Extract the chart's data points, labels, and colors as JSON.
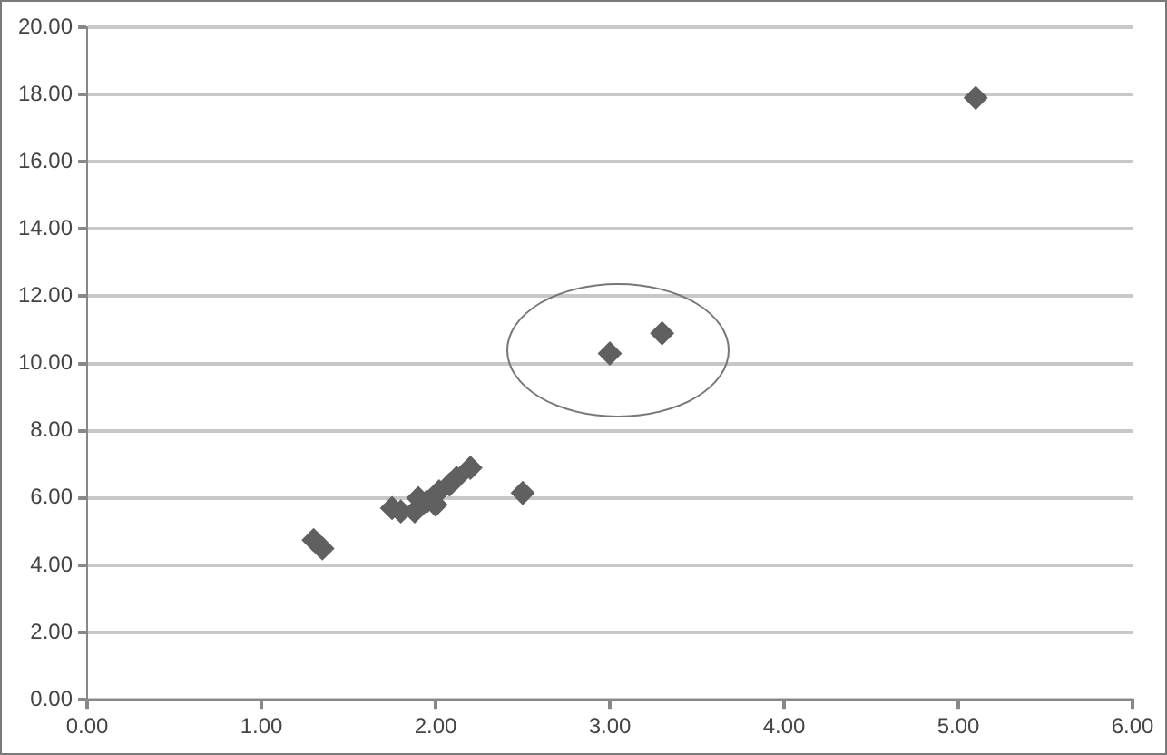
{
  "chart_data": {
    "type": "scatter",
    "marker": "diamond",
    "grid": "y",
    "legend": false,
    "x": [
      1.3,
      1.35,
      1.75,
      1.8,
      1.88,
      1.9,
      1.95,
      2.0,
      2.02,
      2.08,
      2.12,
      2.2,
      2.5,
      3.0,
      3.3,
      5.1
    ],
    "series": [
      {
        "color": "#606060",
        "values": [
          4.75,
          4.5,
          5.7,
          5.6,
          5.6,
          6.0,
          5.9,
          5.8,
          6.2,
          6.4,
          6.6,
          6.9,
          6.15,
          10.3,
          10.9,
          17.9
        ]
      }
    ],
    "xlim": [
      0,
      6
    ],
    "xticks": [
      {
        "value": 0,
        "label": "0.00"
      },
      {
        "value": 1,
        "label": "1.00"
      },
      {
        "value": 2,
        "label": "2.00"
      },
      {
        "value": 3,
        "label": "3.00"
      },
      {
        "value": 4,
        "label": "4.00"
      },
      {
        "value": 5,
        "label": "5.00"
      },
      {
        "value": 6,
        "label": "6.00"
      }
    ],
    "ylim": [
      0,
      20
    ],
    "yticks": [
      {
        "value": 0,
        "label": "0.00"
      },
      {
        "value": 2,
        "label": "2.00"
      },
      {
        "value": 4,
        "label": "4.00"
      },
      {
        "value": 6,
        "label": "6.00"
      },
      {
        "value": 8,
        "label": "8.00"
      },
      {
        "value": 10,
        "label": "10.00"
      },
      {
        "value": 12,
        "label": "12.00"
      },
      {
        "value": 14,
        "label": "14.00"
      },
      {
        "value": 16,
        "label": "16.00"
      },
      {
        "value": 18,
        "label": "18.00"
      },
      {
        "value": 20,
        "label": "20.00"
      }
    ]
  }
}
